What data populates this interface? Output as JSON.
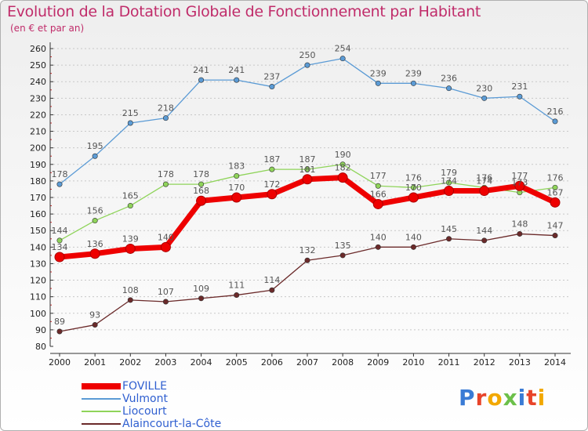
{
  "title": "Evolution de la Dotation Globale de Fonctionnement par Habitant",
  "subtitle": "(en € et par an)",
  "logo": {
    "text": "Proxiti",
    "colors": [
      "#3a7bd5",
      "#e8442a",
      "#f2a800",
      "#6cc04a",
      "#3a7bd5",
      "#e8442a",
      "#f2a800"
    ]
  },
  "chart_data": {
    "type": "line",
    "title": "Evolution de la Dotation Globale de Fonctionnement par Habitant",
    "subtitle": "(en € et par an)",
    "xlabel": "",
    "ylabel": "",
    "x": [
      "2000",
      "2001",
      "2002",
      "2003",
      "2004",
      "2005",
      "2006",
      "2007",
      "2008",
      "2009",
      "2010",
      "2011",
      "2012",
      "2013",
      "2014"
    ],
    "yticks": [
      80,
      90,
      100,
      110,
      120,
      130,
      140,
      150,
      160,
      170,
      180,
      190,
      200,
      210,
      220,
      230,
      240,
      250,
      260
    ],
    "ylim": [
      80,
      260
    ],
    "grid": "horizontal dashed",
    "legend_position": "bottom-left",
    "series": [
      {
        "name": "Vulmont",
        "color": "#5b9bd5",
        "width": 1.3,
        "values": [
          178,
          195,
          215,
          218,
          241,
          241,
          237,
          250,
          254,
          239,
          239,
          236,
          230,
          231,
          216
        ]
      },
      {
        "name": "Liocourt",
        "color": "#8fd45a",
        "width": 1.3,
        "values": [
          144,
          156,
          165,
          178,
          178,
          183,
          187,
          187,
          190,
          177,
          176,
          179,
          176,
          173,
          176
        ]
      },
      {
        "name": "Alaincourt-la-Côte",
        "color": "#6b2a2a",
        "width": 1.3,
        "values": [
          89,
          93,
          108,
          107,
          109,
          111,
          114,
          132,
          135,
          140,
          140,
          145,
          144,
          148,
          147
        ]
      },
      {
        "name": "FOVILLE",
        "color": "#ee0000",
        "width": 7,
        "values": [
          134,
          136,
          139,
          140,
          168,
          170,
          172,
          181,
          182,
          166,
          170,
          174,
          174,
          177,
          167
        ]
      }
    ],
    "legend": [
      "FOVILLE",
      "Vulmont",
      "Liocourt",
      "Alaincourt-la-Côte"
    ]
  }
}
